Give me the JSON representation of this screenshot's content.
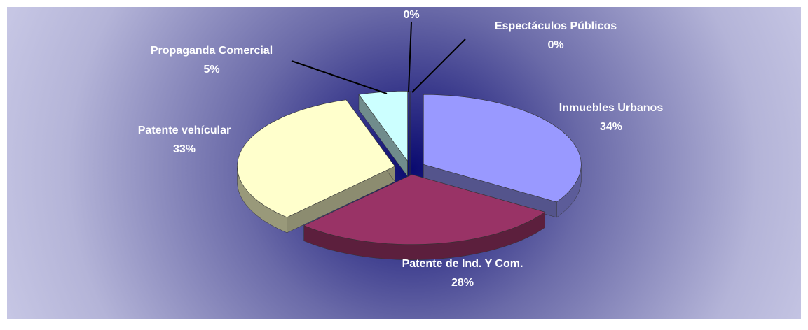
{
  "chart_data": {
    "type": "pie3d",
    "categories": [
      "Inmuebles Urbanos",
      "Patente de Ind. Y Com.",
      "Patente vehícular",
      "Propaganda Comercial",
      null,
      "Espectáculos Públicos"
    ],
    "values": [
      34,
      28,
      33,
      5,
      0,
      0
    ],
    "value_labels": [
      "34%",
      "28%",
      "33%",
      "5%",
      "0%",
      "0%"
    ],
    "colors": [
      "#9999ff",
      "#993366",
      "#ffffcc",
      "#ccffff",
      "#666699",
      "#ff8080"
    ]
  }
}
